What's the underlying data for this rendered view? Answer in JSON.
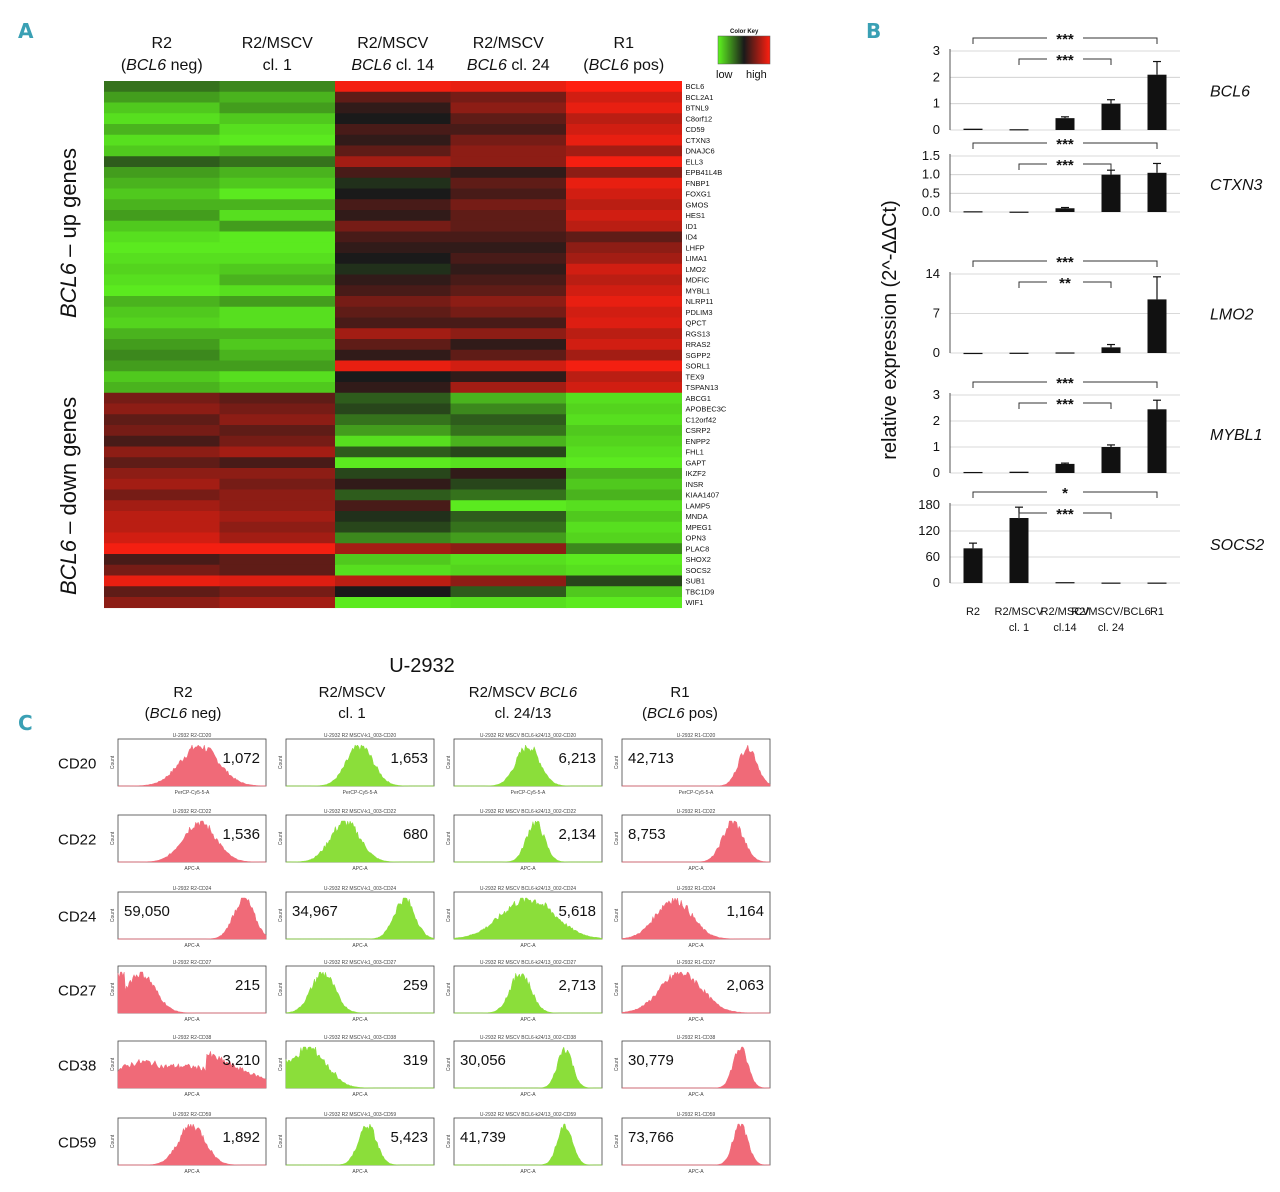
{
  "panel_labels": {
    "a": "A",
    "b": "B",
    "c": "C"
  },
  "colors": {
    "low": "#5ef51f",
    "mid": "#1a1a1a",
    "high": "#ff1f10",
    "bar": "#111111",
    "hist_red": "#f06a78",
    "hist_green": "#8bde3a"
  },
  "heatmap": {
    "column_headers": [
      {
        "line1": "R2",
        "line2_pre": "(",
        "line2_it": "BCL6",
        "line2_post": " neg)"
      },
      {
        "line1": "R2/MSCV",
        "line2_pre": "cl. 1",
        "line2_it": "",
        "line2_post": ""
      },
      {
        "line1": "R2/MSCV",
        "line2_pre": "",
        "line2_it": "BCL6",
        "line2_post": " cl. 14"
      },
      {
        "line1": "R2/MSCV",
        "line2_pre": "",
        "line2_it": "BCL6",
        "line2_post": " cl. 24"
      },
      {
        "line1": "R1",
        "line2_pre": "(",
        "line2_it": "BCL6",
        "line2_post": " pos)"
      }
    ],
    "color_key": {
      "title": "Color Key",
      "low": "low",
      "high": "high"
    },
    "up_label": {
      "italic": "BCL6",
      "rest": " – up genes"
    },
    "down_label": {
      "italic": "BCL6",
      "rest": " – down genes"
    }
  },
  "chart_data": [
    {
      "type": "heatmap",
      "title": "Expression heatmap",
      "columns": [
        "R2 (BCL6 neg)",
        "R2/MSCV cl. 1",
        "R2/MSCV BCL6 cl. 14",
        "R2/MSCV BCL6 cl. 24",
        "R1 (BCL6 pos)"
      ],
      "genes": [
        "BCL6",
        "BCL2A1",
        "BTNL9",
        "C8orf12",
        "CD59",
        "CTXN3",
        "DNAJC6",
        "ELL3",
        "EPB41L4B",
        "FNBP1",
        "FOXG1",
        "GMOS",
        "HES1",
        "ID1",
        "ID4",
        "LHFP",
        "LIMA1",
        "LMO2",
        "MDFIC",
        "MYBL1",
        "NLRP11",
        "PDLIM3",
        "QPCT",
        "RGS13",
        "RRAS2",
        "SGPP2",
        "SORL1",
        "TEX9",
        "TSPAN13",
        "ABCG1",
        "APOBEC3C",
        "C12orf42",
        "CSRP2",
        "ENPP2",
        "FHL1",
        "GAPT",
        "IKZF2",
        "INSR",
        "KIAA1407",
        "LAMP5",
        "MNDA",
        "MPEG1",
        "OPN3",
        "PLAC8",
        "SHOX2",
        "SOCS2",
        "SUB1",
        "TBC1D9",
        "WIF1"
      ],
      "values": [
        [
          -0.4,
          -0.5,
          0.95,
          0.9,
          1.0
        ],
        [
          -0.6,
          -0.7,
          0.3,
          0.4,
          0.8
        ],
        [
          -0.8,
          -0.6,
          0.1,
          0.5,
          0.9
        ],
        [
          -0.9,
          -0.8,
          0.0,
          0.3,
          0.7
        ],
        [
          -0.7,
          -0.9,
          0.2,
          0.2,
          0.8
        ],
        [
          -0.9,
          -0.95,
          0.1,
          0.4,
          0.9
        ],
        [
          -0.8,
          -0.7,
          0.3,
          0.5,
          0.6
        ],
        [
          -0.3,
          -0.4,
          0.6,
          0.5,
          0.95
        ],
        [
          -0.6,
          -0.7,
          0.2,
          0.1,
          0.5
        ],
        [
          -0.7,
          -0.8,
          -0.1,
          0.3,
          0.9
        ],
        [
          -0.8,
          -0.95,
          0.0,
          0.2,
          0.8
        ],
        [
          -0.7,
          -0.7,
          0.2,
          0.4,
          0.7
        ],
        [
          -0.6,
          -0.9,
          0.1,
          0.3,
          0.8
        ],
        [
          -0.8,
          -0.6,
          0.4,
          0.3,
          0.7
        ],
        [
          -0.9,
          -0.95,
          0.2,
          0.2,
          0.3
        ],
        [
          -0.95,
          -0.95,
          0.1,
          0.1,
          0.5
        ],
        [
          -0.9,
          -0.9,
          0.0,
          0.2,
          0.6
        ],
        [
          -0.85,
          -0.8,
          -0.1,
          0.1,
          0.8
        ],
        [
          -0.9,
          -0.7,
          0.1,
          0.2,
          0.7
        ],
        [
          -0.95,
          -0.9,
          0.2,
          0.3,
          0.8
        ],
        [
          -0.7,
          -0.6,
          0.4,
          0.5,
          0.9
        ],
        [
          -0.8,
          -0.9,
          0.3,
          0.4,
          0.8
        ],
        [
          -0.85,
          -0.9,
          0.2,
          0.2,
          0.85
        ],
        [
          -0.7,
          -0.7,
          0.6,
          0.5,
          0.7
        ],
        [
          -0.6,
          -0.8,
          0.3,
          0.1,
          0.8
        ],
        [
          -0.5,
          -0.7,
          0.1,
          0.3,
          0.6
        ],
        [
          -0.6,
          -0.6,
          0.9,
          0.8,
          0.95
        ],
        [
          -0.8,
          -0.9,
          0.0,
          0.1,
          0.7
        ],
        [
          -0.7,
          -0.8,
          0.1,
          0.6,
          0.8
        ],
        [
          0.4,
          0.3,
          -0.3,
          -0.7,
          -0.9
        ],
        [
          0.5,
          0.4,
          -0.2,
          -0.5,
          -0.85
        ],
        [
          0.3,
          0.5,
          -0.4,
          -0.3,
          -0.9
        ],
        [
          0.4,
          0.3,
          -0.6,
          -0.4,
          -0.8
        ],
        [
          0.2,
          0.4,
          -0.9,
          -0.7,
          -0.85
        ],
        [
          0.5,
          0.6,
          -0.3,
          -0.2,
          -0.9
        ],
        [
          0.3,
          0.2,
          -0.95,
          -0.9,
          -0.95
        ],
        [
          0.5,
          0.5,
          -0.2,
          0.1,
          -0.7
        ],
        [
          0.6,
          0.4,
          0.1,
          -0.2,
          -0.8
        ],
        [
          0.4,
          0.5,
          -0.3,
          -0.4,
          -0.7
        ],
        [
          0.6,
          0.5,
          0.2,
          -0.95,
          -0.9
        ],
        [
          0.7,
          0.6,
          -0.1,
          -0.3,
          -0.8
        ],
        [
          0.7,
          0.5,
          -0.2,
          -0.4,
          -0.9
        ],
        [
          0.8,
          0.6,
          -0.5,
          -0.6,
          -0.85
        ],
        [
          0.95,
          0.95,
          0.6,
          0.5,
          -0.5
        ],
        [
          0.2,
          0.3,
          -0.8,
          -0.9,
          -0.95
        ],
        [
          0.4,
          0.3,
          -0.9,
          -0.85,
          -0.9
        ],
        [
          0.9,
          0.85,
          0.7,
          0.5,
          -0.2
        ],
        [
          0.3,
          0.4,
          0.0,
          -0.3,
          -0.8
        ],
        [
          0.5,
          0.6,
          -0.95,
          -0.9,
          -0.95
        ]
      ]
    },
    {
      "type": "bar",
      "title": "relative expression (2^-ΔΔCt)",
      "ylabel": "relative expression (2^-ΔΔCt)",
      "categories": [
        "R2",
        "R2/MSCV cl. 1",
        "R2/MSCV cl.14",
        "R2/MSCV/BCL6 cl. 24",
        "R1"
      ],
      "x_labels": [
        [
          "R2"
        ],
        [
          "R2/MSCV",
          "cl. 1"
        ],
        [
          "R2/MSCV",
          "cl.14"
        ],
        [
          "R2/MSCV/BCL6",
          "cl. 24"
        ],
        [
          "R1"
        ]
      ],
      "panels": [
        {
          "gene": "BCL6",
          "ylim": [
            0,
            3
          ],
          "ticks": [
            "0",
            "1",
            "2",
            "3"
          ],
          "tick_values": [
            0,
            1,
            2,
            3
          ],
          "values": [
            0.05,
            0.03,
            0.45,
            1.0,
            2.1
          ],
          "errors": [
            0,
            0,
            0.05,
            0.15,
            0.5
          ],
          "sig": [
            "***",
            "***"
          ]
        },
        {
          "gene": "CTXN3",
          "ylim": [
            0,
            1.5
          ],
          "ticks": [
            "0.0",
            "0.5",
            "1.0",
            "1.5"
          ],
          "tick_values": [
            0,
            0.5,
            1.0,
            1.5
          ],
          "values": [
            0.02,
            0.01,
            0.1,
            1.0,
            1.05
          ],
          "errors": [
            0,
            0,
            0.02,
            0.12,
            0.25
          ],
          "sig": [
            "***",
            "***"
          ]
        },
        {
          "gene": "LMO2",
          "ylim": [
            0,
            14
          ],
          "ticks": [
            "0",
            "7",
            "14"
          ],
          "tick_values": [
            0,
            7,
            14
          ],
          "values": [
            0.02,
            0.05,
            0.1,
            1.0,
            9.5
          ],
          "errors": [
            0,
            0,
            0,
            0.5,
            4.0
          ],
          "sig": [
            "***",
            "**"
          ]
        },
        {
          "gene": "MYBL1",
          "ylim": [
            0,
            3
          ],
          "ticks": [
            "0",
            "1",
            "2",
            "3"
          ],
          "tick_values": [
            0,
            1,
            2,
            3
          ],
          "values": [
            0.04,
            0.05,
            0.35,
            1.0,
            2.45
          ],
          "errors": [
            0,
            0,
            0.03,
            0.08,
            0.35
          ],
          "sig": [
            "***",
            "***"
          ]
        },
        {
          "gene": "SOCS2",
          "ylim": [
            0,
            180
          ],
          "ticks": [
            "0",
            "60",
            "120",
            "180"
          ],
          "tick_values": [
            0,
            60,
            120,
            180
          ],
          "values": [
            80,
            150,
            2,
            1,
            1
          ],
          "errors": [
            12,
            25,
            0,
            0,
            0
          ],
          "sig": [
            "*",
            "***"
          ]
        }
      ]
    },
    {
      "type": "histogram",
      "title": "U-2932",
      "columns": [
        {
          "line1": "R2",
          "line2_pre": "(",
          "line2_it": "BCL6",
          "line2_post": " neg)",
          "color": "red"
        },
        {
          "line1": "R2/MSCV",
          "line2_pre": "cl. 1",
          "line2_it": "",
          "line2_post": "",
          "color": "green"
        },
        {
          "line1": "R2/MSCV ",
          "line1_it": "BCL6",
          "line2_pre": "cl. 24/13",
          "line2_it": "",
          "line2_post": "",
          "color": "green"
        },
        {
          "line1": "R1",
          "line2_pre": "(",
          "line2_it": "BCL6",
          "line2_post": " pos)",
          "color": "red"
        }
      ],
      "markers": [
        "CD20",
        "CD22",
        "CD24",
        "CD27",
        "CD38",
        "CD59"
      ],
      "mfi": [
        [
          "1,072",
          "1,653",
          "6,213",
          "42,713"
        ],
        [
          "1,536",
          "680",
          "2,134",
          "8,753"
        ],
        [
          "59,050",
          "34,967",
          "5,618",
          "1,164"
        ],
        [
          "215",
          "259",
          "2,713",
          "2,063"
        ],
        [
          "3,210",
          "319",
          "30,056",
          "30,779"
        ],
        [
          "1,892",
          "5,423",
          "41,739",
          "73,766"
        ]
      ],
      "peak_positions": [
        [
          0.55,
          0.5,
          0.5,
          0.85
        ],
        [
          0.55,
          0.4,
          0.55,
          0.75
        ],
        [
          0.85,
          0.8,
          0.5,
          0.35
        ],
        [
          0.15,
          0.25,
          0.45,
          0.4
        ],
        [
          0.4,
          0.15,
          0.75,
          0.8
        ],
        [
          0.5,
          0.55,
          0.75,
          0.8
        ]
      ],
      "peak_widths": [
        [
          0.13,
          0.09,
          0.08,
          0.06
        ],
        [
          0.11,
          0.1,
          0.06,
          0.07
        ],
        [
          0.07,
          0.07,
          0.18,
          0.12
        ],
        [
          0.1,
          0.08,
          0.07,
          0.14
        ],
        [
          0.35,
          0.12,
          0.05,
          0.05
        ],
        [
          0.09,
          0.06,
          0.05,
          0.05
        ]
      ],
      "panel_titles": [
        [
          "U-2932 R2-CD20",
          "U-2932 R2 MSCV-k1_003-CD20",
          "U-2932 R2 MSCV BCL6-k24/13_002-CD20",
          "U-2932 R1-CD20"
        ],
        [
          "U-2932 R2-CD22",
          "U-2932 R2 MSCV-k1_003-CD22",
          "U-2932 R2 MSCV BCL6-k24/13_002-CD22",
          "U-2932 R1-CD22"
        ],
        [
          "U-2932 R2-CD24",
          "U-2932 R2 MSCV-k1_003-CD24",
          "U-2932 R2 MSCV BCL6-k24/13_002-CD24",
          "U-2932 R1-CD24"
        ],
        [
          "U-2932 R2-CD27",
          "U-2932 R2 MSCV-k1_003-CD27",
          "U-2932 R2 MSCV BCL6-k24/13_002-CD27",
          "U-2932 R1-CD27"
        ],
        [
          "U-2932 R2-CD38",
          "U-2932 R2 MSCV-k1_003-CD38",
          "U-2932 R2 MSCV BCL6-k24/13_002-CD38",
          "U-2932 R1-CD38"
        ],
        [
          "U-2932 R2-CD59",
          "U-2932 R2 MSCV-k1_003-CD59",
          "U-2932 R2 MSCV BCL6-k24/13_002-CD59",
          "U-2932 R1-CD59"
        ]
      ],
      "x_axis_labels": [
        "PerCP-Cy5-5-A",
        "APC-A",
        "APC-A",
        "APC-A",
        "APC-A",
        "APC-A"
      ],
      "y_axis_label": "Count"
    }
  ]
}
